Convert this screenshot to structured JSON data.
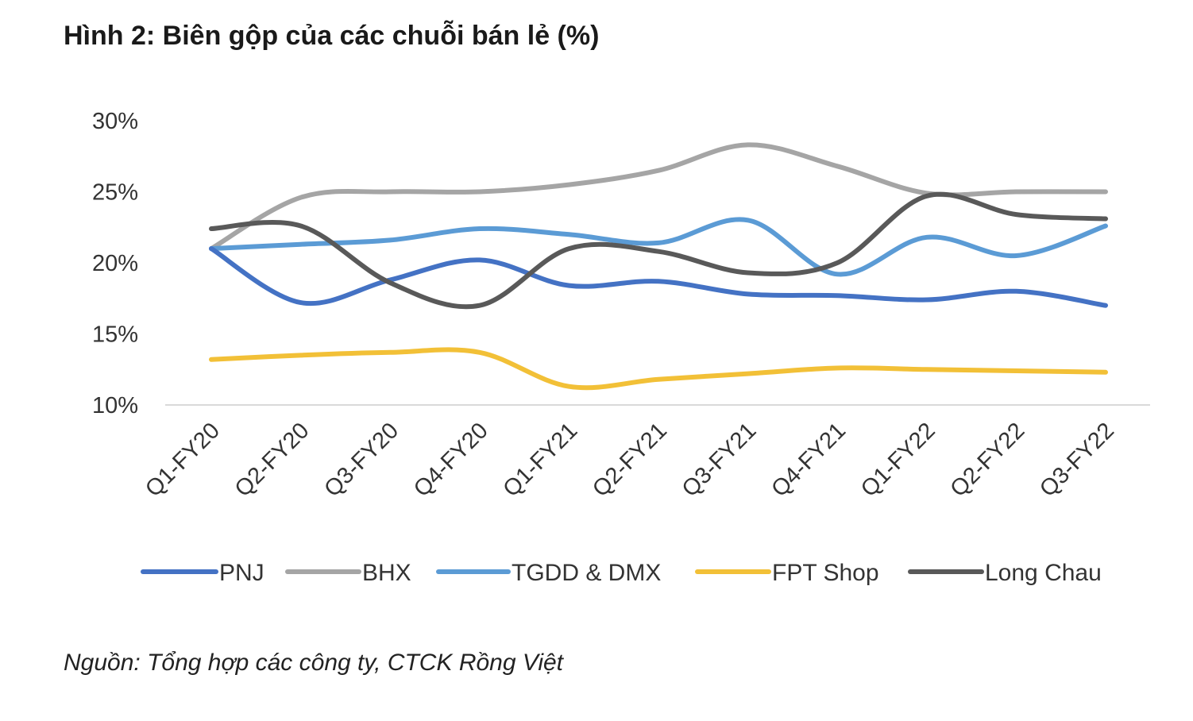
{
  "title": "Hình 2: Biên gộp của các chuỗi bán lẻ (%)",
  "source": "Nguồn: Tổng hợp các công ty, CTCK Rồng Việt",
  "chart_data": {
    "type": "line",
    "title": "Hình 2: Biên gộp của các chuỗi bán lẻ (%)",
    "xlabel": "",
    "ylabel": "",
    "categories": [
      "Q1-FY20",
      "Q2-FY20",
      "Q3-FY20",
      "Q4-FY20",
      "Q1-FY21",
      "Q2-FY21",
      "Q3-FY21",
      "Q4-FY21",
      "Q1-FY22",
      "Q2-FY22",
      "Q3-FY22"
    ],
    "ylim": [
      10,
      30
    ],
    "yticks": [
      10,
      15,
      20,
      25,
      30
    ],
    "ytick_labels": [
      "10%",
      "15%",
      "20%",
      "25%",
      "30%"
    ],
    "grid": false,
    "legend_position": "bottom",
    "series": [
      {
        "name": "PNJ",
        "color": "#4472C4",
        "values": [
          21.0,
          17.2,
          18.8,
          20.2,
          18.4,
          18.7,
          17.8,
          17.7,
          17.4,
          18.0,
          17.0
        ]
      },
      {
        "name": "BHX",
        "color": "#A5A5A5",
        "values": [
          21.0,
          24.6,
          25.0,
          25.0,
          25.5,
          26.5,
          28.3,
          26.8,
          24.9,
          25.0,
          25.0
        ]
      },
      {
        "name": "TGDD & DMX",
        "color": "#5B9BD5",
        "values": [
          21.0,
          21.3,
          21.6,
          22.4,
          22.0,
          21.4,
          23.0,
          19.2,
          21.8,
          20.5,
          22.6
        ]
      },
      {
        "name": "FPT Shop",
        "color": "#F2C037",
        "values": [
          13.2,
          13.5,
          13.7,
          13.7,
          11.3,
          11.8,
          12.2,
          12.6,
          12.5,
          12.4,
          12.3
        ]
      },
      {
        "name": "Long Chau",
        "color": "#595959",
        "values": [
          22.4,
          22.6,
          18.6,
          17.0,
          21.0,
          20.8,
          19.3,
          20.0,
          24.7,
          23.4,
          23.1
        ]
      }
    ]
  }
}
